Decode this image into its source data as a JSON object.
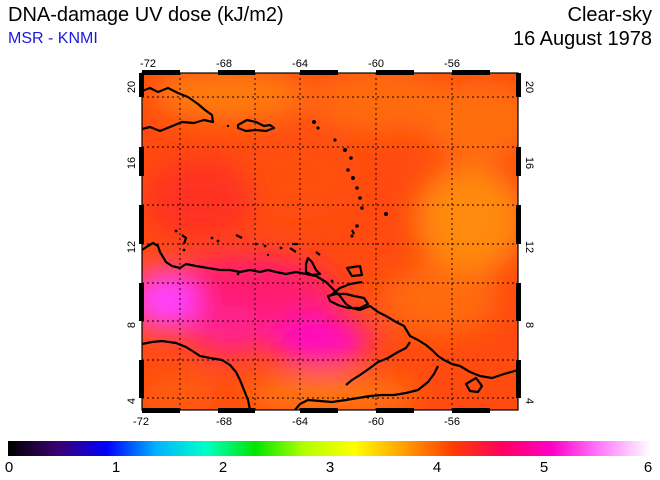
{
  "header": {
    "title": "DNA-damage UV dose (kJ/m2)",
    "source": "MSR - KNMI",
    "condition": "Clear-sky",
    "date": "16 August 1978"
  },
  "map": {
    "lon_ticks": [
      "-72",
      "-68",
      "-64",
      "-60",
      "-56"
    ],
    "lat_ticks": [
      "4",
      "8",
      "12",
      "16",
      "20"
    ],
    "lon_range": [
      -72,
      -52
    ],
    "lat_range": [
      3.5,
      20.5
    ]
  },
  "colorbar": {
    "labels": [
      "0",
      "1",
      "2",
      "3",
      "4",
      "5",
      "6"
    ],
    "range": [
      0,
      6
    ],
    "colors": [
      "#000000",
      "#3a0070",
      "#0000ff",
      "#00b4ff",
      "#00ffc8",
      "#00e600",
      "#b4ff00",
      "#ffff00",
      "#ffa000",
      "#ff3c00",
      "#ff0060",
      "#ff00c8",
      "#ff80ff",
      "#ffffff"
    ]
  }
}
